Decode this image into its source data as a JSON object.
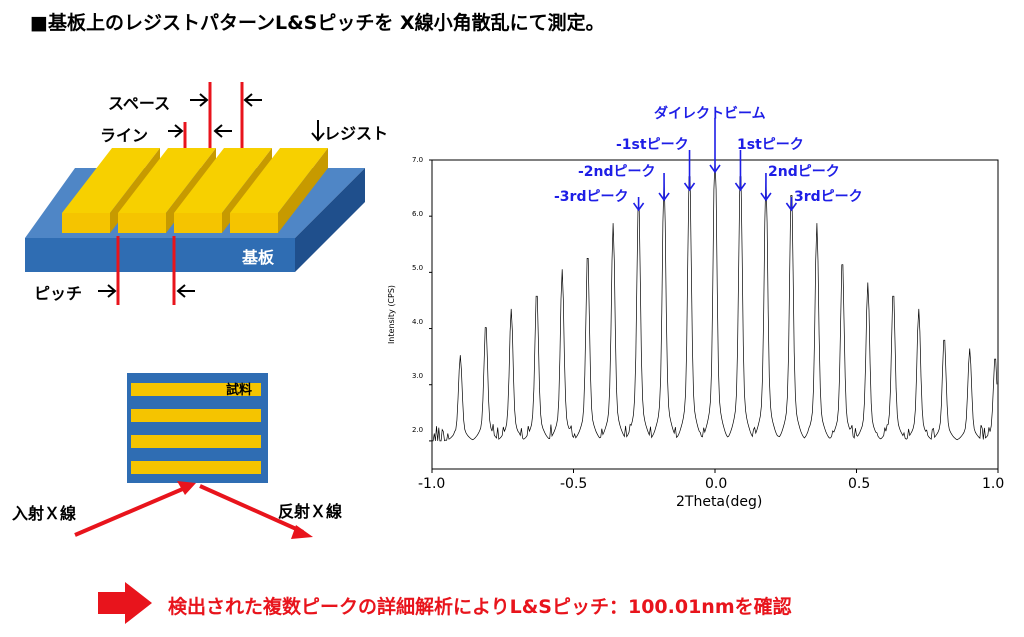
{
  "title": "■基板上のレジストパターンL&Sピッチを X線小角散乱にて測定。",
  "diagram": {
    "space_label": "スペース",
    "line_label": "ライン",
    "resist_label": "レジスト",
    "substrate_label": "基板",
    "pitch_label": "ピッチ",
    "sample_label": "試料",
    "incident_label": "入射Ｘ線",
    "reflected_label": "反射Ｘ線"
  },
  "chart_data": {
    "type": "line",
    "xlabel": "2Theta(deg)",
    "ylabel": "Intensity (CPS)",
    "xlim": [
      -1.0,
      1.0
    ],
    "ylim": [
      1.5,
      7.0
    ],
    "x_ticks": [
      "-1.0",
      "-0.5",
      "0.0",
      "0.5",
      "1.0"
    ],
    "y_ticks": [
      "2.0",
      "3.0",
      "4.0",
      "5.0",
      "6.0",
      "7.0"
    ],
    "peak_positions": [
      -0.9,
      -0.81,
      -0.72,
      -0.63,
      -0.54,
      -0.45,
      -0.36,
      -0.27,
      -0.18,
      -0.09,
      0.0,
      0.09,
      0.18,
      0.27,
      0.36,
      0.45,
      0.54,
      0.63,
      0.72,
      0.81,
      0.9,
      0.99
    ],
    "peak_values": [
      3.3,
      3.8,
      4.0,
      4.3,
      4.6,
      4.9,
      5.3,
      5.7,
      6.0,
      6.2,
      6.6,
      6.2,
      6.0,
      5.9,
      5.3,
      4.8,
      4.4,
      4.3,
      4.0,
      3.6,
      3.4,
      3.3
    ],
    "baseline": 2.0,
    "annotations": [
      "ダイレクトビーム",
      "-1stピーク",
      "1stピーク",
      "-2ndピーク",
      "2ndピーク",
      "-3rdピーク",
      "3rdピーク"
    ]
  },
  "conclusion": "検出された複数ピークの詳細解析によりL&Sピッチ：100.01nmを確認",
  "colors": {
    "accent_red": "#e8141c",
    "blue": "#1e1ee6",
    "substrate": "#2f6db3",
    "resist": "#f5c400"
  }
}
